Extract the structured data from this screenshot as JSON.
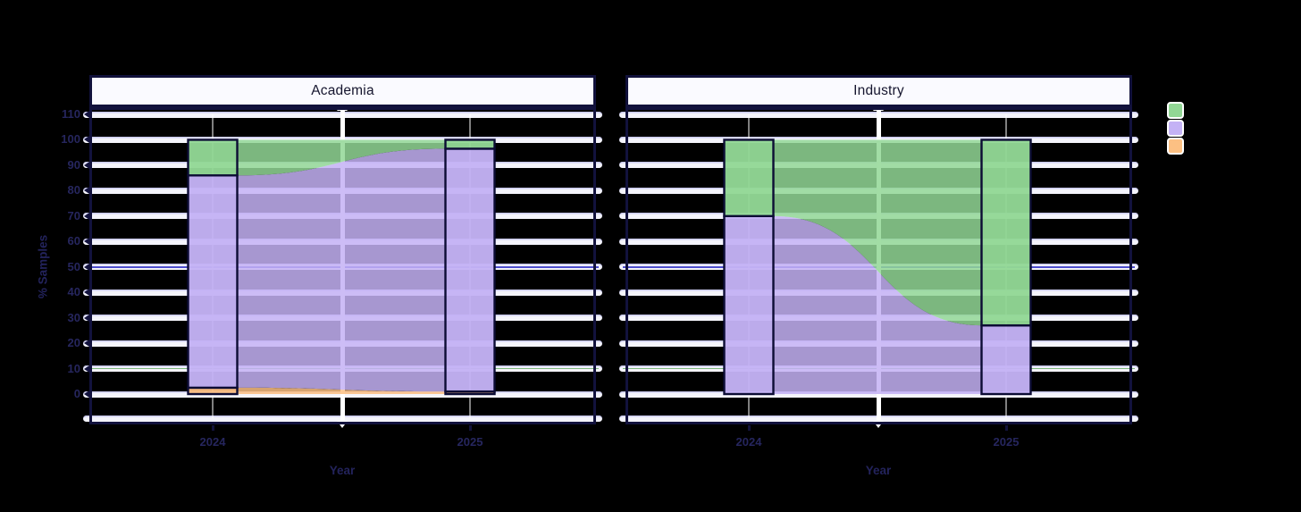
{
  "figure": {
    "background": "#000000",
    "y_axis": {
      "title": "% Samples",
      "ticks": [
        110,
        100,
        90,
        80,
        70,
        60,
        50,
        40,
        30,
        20,
        10,
        0
      ],
      "tick_color": "#26265e"
    },
    "x_axis": {
      "title": "Year",
      "categories": [
        "2024",
        "2025"
      ]
    },
    "legend": {
      "position": "right",
      "items": [
        {
          "name": "green",
          "color": "#92d795"
        },
        {
          "name": "purple",
          "color": "#c4b2f5"
        },
        {
          "name": "orange",
          "color": "#fcc083"
        }
      ]
    },
    "accent_gridlines": {
      "50": "#3a3ac8",
      "10": "#6fae6f"
    },
    "style": {
      "gridline_color": "#f4f4fb",
      "panel_border_color": "#12123d",
      "stratum_stroke": "#0c0c34",
      "strip_fill": "#fafaff"
    }
  },
  "chart_data": {
    "type": "area",
    "subtype": "alluvial-flow",
    "x": [
      "2024",
      "2025"
    ],
    "xlabel": "Year",
    "ylabel": "% Samples",
    "ylim": [
      0,
      110
    ],
    "grid": true,
    "legend_position": "right",
    "stack_order": "bottom-to-top",
    "panels": [
      {
        "title": "Academia",
        "series": [
          {
            "name": "orange",
            "color": "#fcc083",
            "values": [
              2.5,
              1
            ]
          },
          {
            "name": "purple",
            "color": "#c4b2f5",
            "values": [
              83.5,
              95.5
            ]
          },
          {
            "name": "green",
            "color": "#92d795",
            "values": [
              14,
              3.5
            ]
          }
        ]
      },
      {
        "title": "Industry",
        "series": [
          {
            "name": "orange",
            "color": "#fcc083",
            "values": [
              0,
              0
            ]
          },
          {
            "name": "purple",
            "color": "#c4b2f5",
            "values": [
              70,
              27
            ]
          },
          {
            "name": "green",
            "color": "#92d795",
            "values": [
              30,
              73
            ]
          }
        ]
      }
    ]
  }
}
